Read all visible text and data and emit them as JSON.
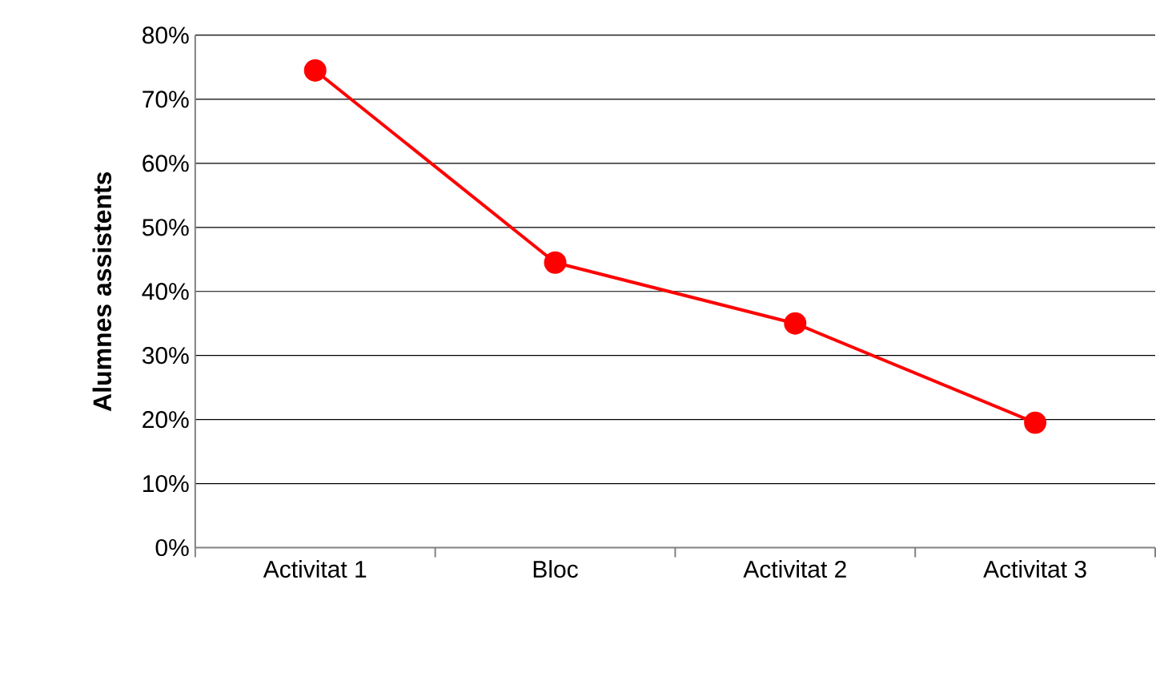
{
  "chart_data": {
    "type": "line",
    "ylabel": "Alumnes assistents",
    "categories": [
      "Activitat 1",
      "Bloc",
      "Activitat 2",
      "Activitat 3"
    ],
    "series": [
      {
        "color": "#ff0000",
        "values": [
          74.5,
          44.5,
          35,
          19.5
        ]
      }
    ],
    "ylim": [
      0,
      80
    ],
    "yticks": [
      {
        "value": 0,
        "label": "0%"
      },
      {
        "value": 10,
        "label": "10%"
      },
      {
        "value": 20,
        "label": "20%"
      },
      {
        "value": 30,
        "label": "30%"
      },
      {
        "value": 40,
        "label": "40%"
      },
      {
        "value": 50,
        "label": "50%"
      },
      {
        "value": 60,
        "label": "60%"
      },
      {
        "value": 70,
        "label": "70%"
      },
      {
        "value": 80,
        "label": "80%"
      }
    ],
    "grid": "y",
    "marker": "circle",
    "line_style": "solid"
  }
}
